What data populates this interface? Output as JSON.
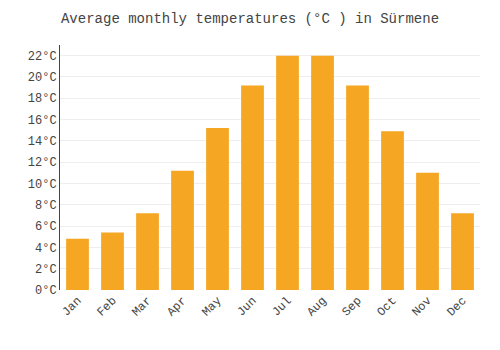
{
  "chart_data": {
    "type": "bar",
    "title": "Average monthly temperatures (°C ) in Sürmene",
    "categories": [
      "Jan",
      "Feb",
      "Mar",
      "Apr",
      "May",
      "Jun",
      "Jul",
      "Aug",
      "Sep",
      "Oct",
      "Nov",
      "Dec"
    ],
    "values": [
      4.8,
      5.4,
      7.2,
      11.2,
      15.2,
      19.2,
      22.0,
      22.0,
      19.2,
      14.9,
      11.0,
      7.2
    ],
    "color": "#F5A623",
    "ylim": [
      0,
      23
    ],
    "yticks": [
      {
        "value": 0,
        "label": "0°C"
      },
      {
        "value": 2,
        "label": "2°C"
      },
      {
        "value": 4,
        "label": "4°C"
      },
      {
        "value": 6,
        "label": "6°C"
      },
      {
        "value": 8,
        "label": "8°C"
      },
      {
        "value": 10,
        "label": "10°C"
      },
      {
        "value": 12,
        "label": "12°C"
      },
      {
        "value": 14,
        "label": "14°C"
      },
      {
        "value": 16,
        "label": "16°C"
      },
      {
        "value": 18,
        "label": "18°C"
      },
      {
        "value": 20,
        "label": "20°C"
      },
      {
        "value": 22,
        "label": "22°C"
      }
    ],
    "grid": true
  }
}
